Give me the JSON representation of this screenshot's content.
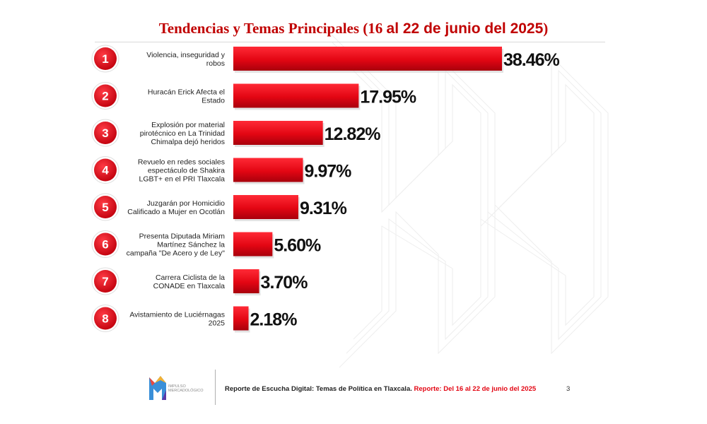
{
  "header": {
    "title_part1": "Tendencias y Temas Principales (16 ",
    "title_part2": "al 22 de junio del 2025",
    "title_part3": ")"
  },
  "chart_data": {
    "type": "bar",
    "orientation": "horizontal",
    "categories": [
      [
        "Violencia, inseguridad y",
        "robos"
      ],
      [
        "Huracán Erick Afecta el",
        "Estado"
      ],
      [
        "Explosión por material",
        "pirotécnico en La Trinidad",
        "Chimalpa dejó  heridos"
      ],
      [
        "Revuelo en redes sociales",
        "espectáculo de Shakira",
        "LGBT+ en el PRI Tlaxcala"
      ],
      [
        "Juzgarán por Homicidio",
        "Calificado a Mujer en Ocotlán"
      ],
      [
        "Presenta Diputada Miriam",
        "Martínez Sánchez la",
        "campaña \"De Acero y de Ley\""
      ],
      [
        "Carrera Ciclista de la",
        "CONADE en Tlaxcala"
      ],
      [
        "Avistamiento de Luciérnagas",
        "2025"
      ]
    ],
    "ranks": [
      "1",
      "2",
      "3",
      "4",
      "5",
      "6",
      "7",
      "8"
    ],
    "values": [
      38.46,
      17.95,
      12.82,
      9.97,
      9.31,
      5.6,
      3.7,
      2.18
    ],
    "value_labels": [
      "38.46%",
      "17.95%",
      "12.82%",
      "9.97%",
      "9.31%",
      "5.60%",
      "3.70%",
      "2.18%"
    ],
    "xlim": [
      0,
      38.46
    ],
    "grid": false,
    "legend": "none"
  },
  "colors": {
    "title": "#c00000",
    "bar": "#e30613",
    "bar_dark": "#a8000c",
    "badge": "#e30613",
    "value_text": "#111111",
    "label_text": "#222222"
  },
  "footer": {
    "logo_text_1": "IMPULSO",
    "logo_text_2": "MERCADOLÓGICO",
    "report_prefix": "Reporte de Escucha Digital: ",
    "report_middle": "Temas de Política en Tlaxcala. ",
    "report_red": "Reporte: Del 16 al 22 de junio del 2025",
    "page_number": "3"
  }
}
